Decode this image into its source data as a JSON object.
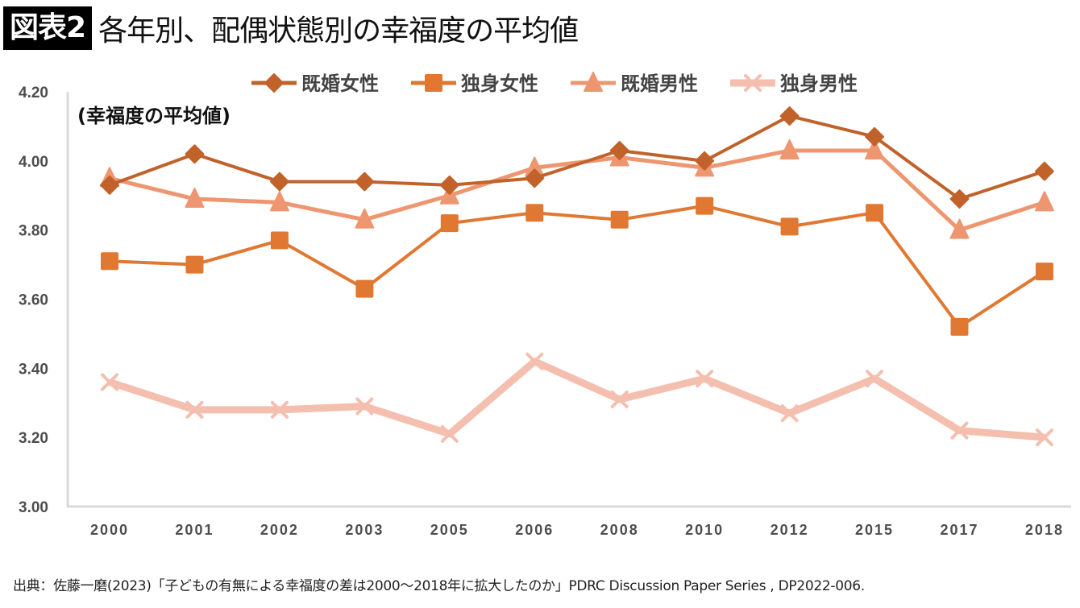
{
  "header": {
    "badge": "図表2",
    "title": "各年別、配偶状態別の幸福度の平均値"
  },
  "source": "出典：佐藤一磨(2023)「子どもの有無による幸福度の差は2000～2018年に拡大したのか」PDRC Discussion Paper Series , DP2022-006.",
  "chart_data": {
    "type": "line",
    "title": "各年別、配偶状態別の幸福度の平均値",
    "ylabel": "(幸福度の平均値)",
    "xlabel": "",
    "categories": [
      "2000",
      "2001",
      "2002",
      "2003",
      "2005",
      "2006",
      "2008",
      "2010",
      "2012",
      "2015",
      "2017",
      "2018"
    ],
    "ylim": [
      3.0,
      4.2
    ],
    "yticks": [
      "3.00",
      "3.20",
      "3.40",
      "3.60",
      "3.80",
      "4.00",
      "4.20"
    ],
    "ytick_values": [
      3.0,
      3.2,
      3.4,
      3.6,
      3.8,
      4.0,
      4.2
    ],
    "grid": false,
    "legend_position": "top",
    "series": [
      {
        "name": "既婚女性",
        "marker": "diamond",
        "color": "#C0622A",
        "values": [
          3.93,
          4.02,
          3.94,
          3.94,
          3.93,
          3.95,
          4.03,
          4.0,
          4.13,
          4.07,
          3.89,
          3.97
        ]
      },
      {
        "name": "独身女性",
        "marker": "square",
        "color": "#E07832",
        "values": [
          3.71,
          3.7,
          3.77,
          3.63,
          3.82,
          3.85,
          3.83,
          3.87,
          3.81,
          3.85,
          3.52,
          3.68
        ]
      },
      {
        "name": "既婚男性",
        "marker": "triangle",
        "color": "#EE9670",
        "values": [
          3.95,
          3.89,
          3.88,
          3.83,
          3.9,
          3.98,
          4.01,
          3.98,
          4.03,
          4.03,
          3.8,
          3.88
        ]
      },
      {
        "name": "独身男性",
        "marker": "x",
        "color": "#F4BFAE",
        "values": [
          3.36,
          3.28,
          3.28,
          3.29,
          3.21,
          3.42,
          3.31,
          3.37,
          3.27,
          3.37,
          3.22,
          3.2
        ]
      }
    ]
  }
}
